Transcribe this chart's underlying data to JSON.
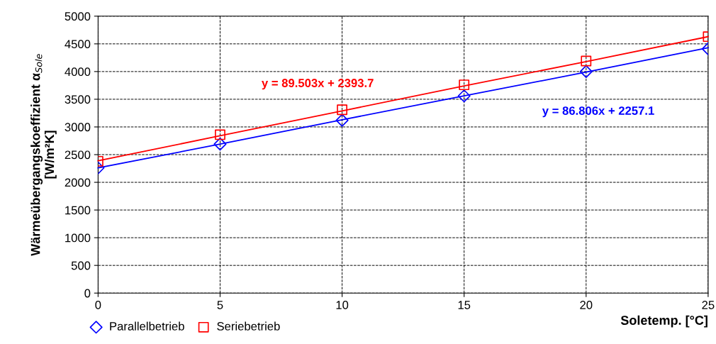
{
  "chart_data": {
    "type": "scatter",
    "xlabel": "Soletemp. [°C]",
    "ylabel": "Wärmeübergangskoeffizient α$_{Sole}$\n[W/m²K]",
    "x": [
      0,
      5,
      10,
      15,
      20,
      25
    ],
    "series": [
      {
        "name": "Parallelbetrieb",
        "color": "#0000ff",
        "marker": "diamond",
        "values": [
          2260,
          2690,
          3120,
          3560,
          4000,
          4410
        ]
      },
      {
        "name": "Seriebetrieb",
        "color": "#ff0000",
        "marker": "square",
        "values": [
          2380,
          2860,
          3310,
          3760,
          4190,
          4630
        ]
      },
      {
        "type": "line",
        "color": "#ff0000",
        "marker": "none",
        "line_style": "solid",
        "values": [
          2390,
          2840,
          3290,
          3740,
          4180,
          4630
        ]
      },
      {
        "type": "line",
        "color": "#0000ff",
        "marker": "none",
        "line_style": "solid",
        "values": [
          2260,
          2690,
          3130,
          3560,
          3990,
          4430
        ]
      }
    ],
    "annotations": [
      "y = 89.503x + 2393.7",
      "y = 86.806x + 2257.1"
    ],
    "xlim": [
      0,
      25
    ],
    "xticks": [
      0,
      5,
      10,
      15,
      20,
      25
    ],
    "ylim": [
      0,
      5000
    ],
    "yticks": [
      0,
      500,
      1000,
      1500,
      2000,
      2500,
      3000,
      3500,
      4000,
      4500,
      5000
    ],
    "grid": true,
    "legend": "bottom left"
  }
}
